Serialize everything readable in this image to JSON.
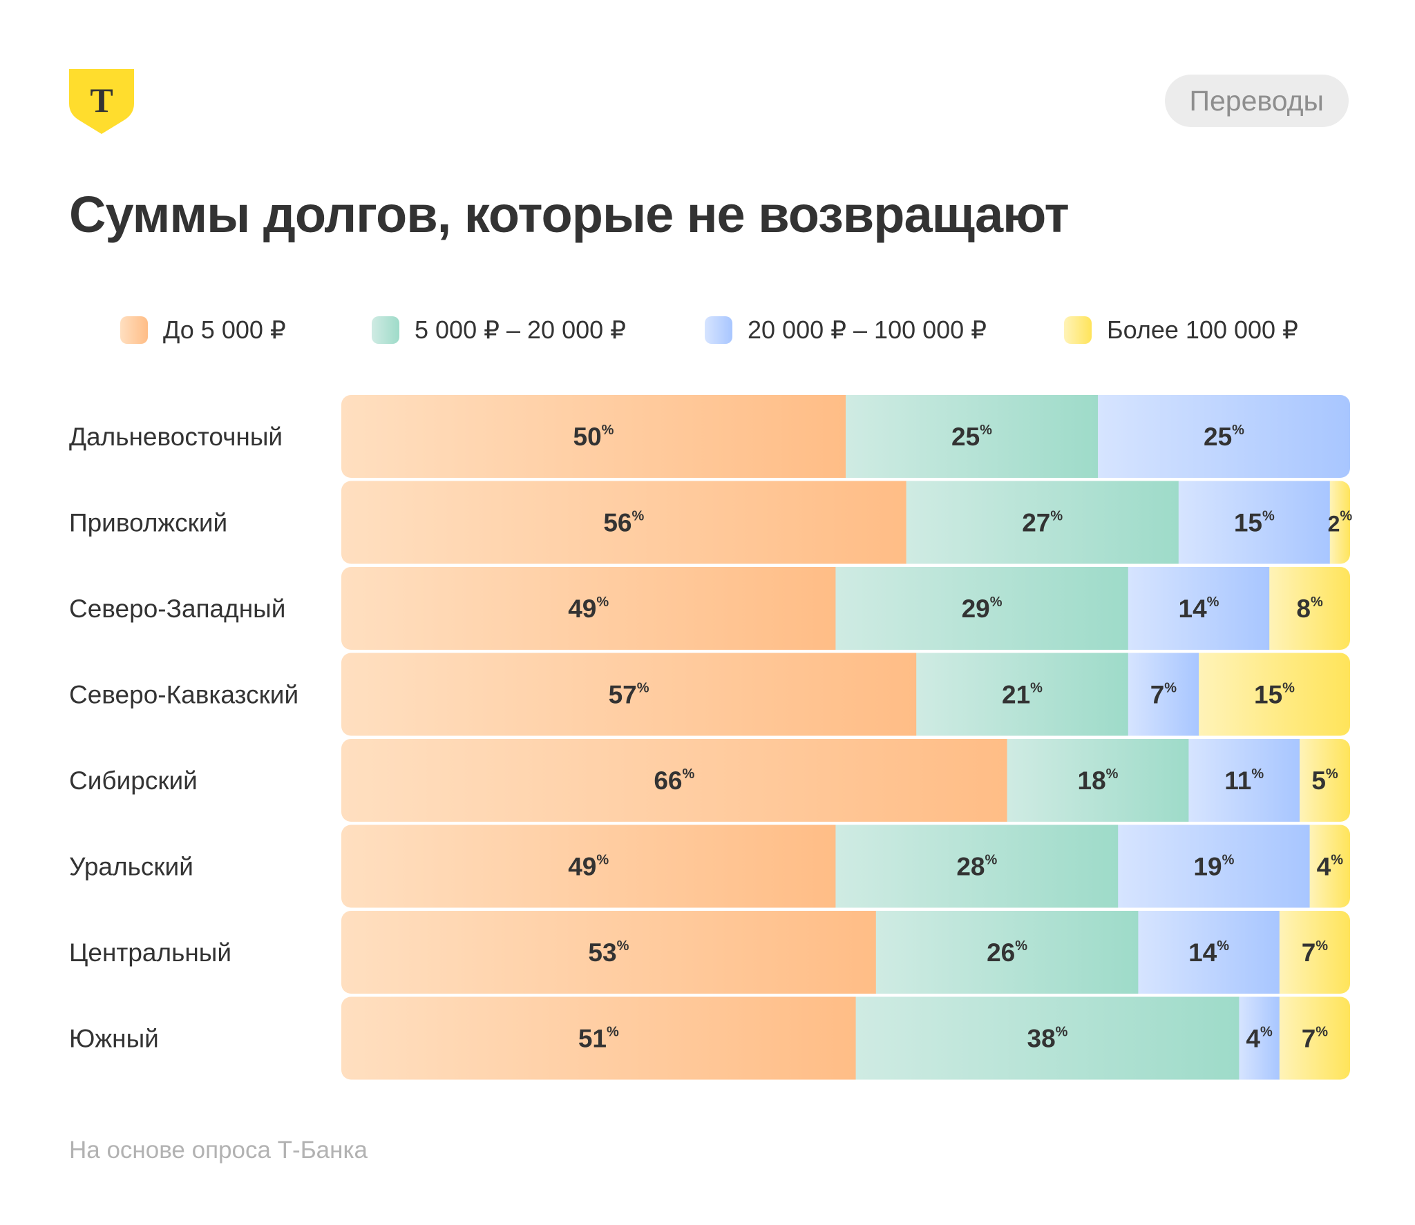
{
  "header": {
    "logo_letter": "Т",
    "logo_color": "#ffdd2d",
    "tag": "Переводы"
  },
  "title": "Суммы долгов, которые не возвращают",
  "footnote": "На основе опроса Т-Банка",
  "chart_data": {
    "type": "bar",
    "orientation": "horizontal",
    "stacked": true,
    "normalized": true,
    "unit": "%",
    "legend_position": "top",
    "categories": [
      "Дальневосточный",
      "Приволжский",
      "Северо-Западный",
      "Северо-Кавказский",
      "Сибирский",
      "Уральский",
      "Центральный",
      "Южный"
    ],
    "series": [
      {
        "name": "До 5 000 ₽",
        "color_from": "#ffdfc0",
        "color_to": "#ffbd86",
        "values": [
          50,
          56,
          49,
          57,
          66,
          49,
          53,
          51
        ]
      },
      {
        "name": "5 000 ₽ – 20 000 ₽",
        "color_from": "#cfebe3",
        "color_to": "#9edbc9",
        "values": [
          25,
          27,
          29,
          21,
          18,
          28,
          26,
          38
        ]
      },
      {
        "name": "20 000 ₽ – 100 000 ₽",
        "color_from": "#d6e4ff",
        "color_to": "#a8c6ff",
        "values": [
          25,
          15,
          14,
          7,
          11,
          19,
          14,
          4
        ]
      },
      {
        "name": "Более 100 000 ₽",
        "color_from": "#fff3b8",
        "color_to": "#ffe45a",
        "values": [
          0,
          2,
          8,
          15,
          5,
          4,
          7,
          7
        ]
      }
    ]
  }
}
